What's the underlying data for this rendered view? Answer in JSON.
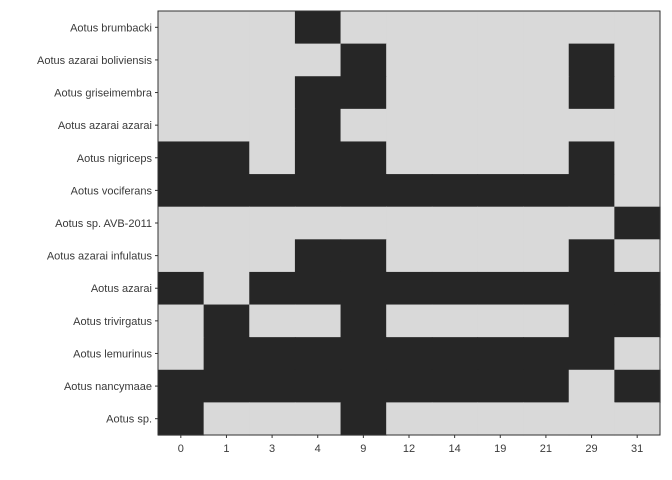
{
  "chart_data": {
    "type": "heatmap",
    "title": "",
    "xlabel": "",
    "ylabel": "",
    "categories_x": [
      "0",
      "1",
      "3",
      "4",
      "9",
      "12",
      "14",
      "19",
      "21",
      "29",
      "31"
    ],
    "categories_y": [
      "Aotus brumbacki",
      "Aotus azarai boliviensis",
      "Aotus griseimembra",
      "Aotus azarai azarai",
      "Aotus nigriceps",
      "Aotus vociferans",
      "Aotus sp. AVB-2011",
      "Aotus azarai infulatus",
      "Aotus azarai",
      "Aotus trivirgatus",
      "Aotus lemurinus",
      "Aotus nancymaae",
      "Aotus sp."
    ],
    "values": [
      [
        0,
        0,
        0,
        1,
        0,
        0,
        0,
        0,
        0,
        0,
        0
      ],
      [
        0,
        0,
        0,
        0,
        1,
        0,
        0,
        0,
        0,
        1,
        0
      ],
      [
        0,
        0,
        0,
        1,
        1,
        0,
        0,
        0,
        0,
        1,
        0
      ],
      [
        0,
        0,
        0,
        1,
        0,
        0,
        0,
        0,
        0,
        0,
        0
      ],
      [
        1,
        1,
        0,
        1,
        1,
        0,
        0,
        0,
        0,
        1,
        0
      ],
      [
        1,
        1,
        1,
        1,
        1,
        1,
        1,
        1,
        1,
        1,
        0
      ],
      [
        0,
        0,
        0,
        0,
        0,
        0,
        0,
        0,
        0,
        0,
        1
      ],
      [
        0,
        0,
        0,
        1,
        1,
        0,
        0,
        0,
        0,
        1,
        0
      ],
      [
        1,
        0,
        1,
        1,
        1,
        1,
        1,
        1,
        1,
        1,
        1
      ],
      [
        0,
        1,
        0,
        0,
        1,
        0,
        0,
        0,
        0,
        1,
        1
      ],
      [
        0,
        1,
        1,
        1,
        1,
        1,
        1,
        1,
        1,
        1,
        0
      ],
      [
        1,
        1,
        1,
        1,
        1,
        1,
        1,
        1,
        1,
        0,
        1
      ],
      [
        1,
        0,
        0,
        0,
        1,
        0,
        0,
        0,
        0,
        0,
        0
      ]
    ],
    "legend": "none",
    "grid": true,
    "colors": {
      "present": "#262626",
      "absent": "#d9d9d9",
      "panel_border": "#333333",
      "text": "#3a3a3a"
    }
  }
}
